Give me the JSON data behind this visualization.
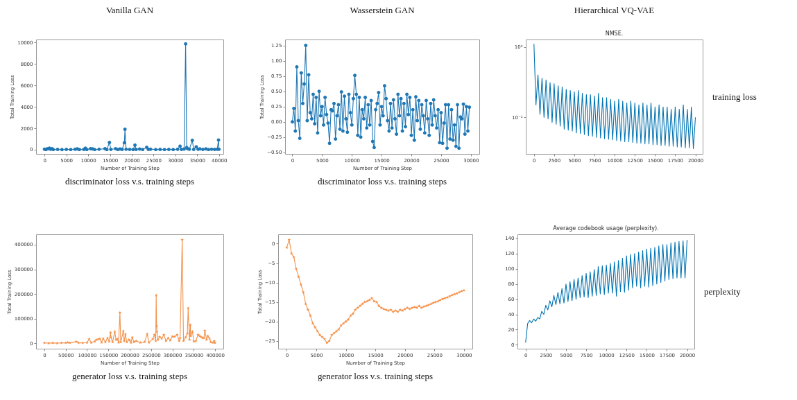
{
  "chart_data": [
    {
      "type": "line",
      "xlabel": "Number of Training Step",
      "ylabel": "Total Training Loss",
      "marker": "circle",
      "annotations": [
        "Vanilla GAN",
        "discriminator loss v.s. training steps"
      ],
      "xlim": [
        -1940,
        41000
      ],
      "ylim": [
        -390,
        10280
      ],
      "xticks": [
        0,
        5000,
        10000,
        15000,
        20000,
        25000,
        30000,
        35000,
        40000
      ],
      "yticks": [
        0,
        2000,
        4000,
        6000,
        8000,
        10000
      ],
      "x": [
        0,
        300,
        600,
        900,
        1120,
        1400,
        1730,
        2000,
        3000,
        4000,
        5000,
        6000,
        7000,
        7490,
        8000,
        9000,
        9370,
        9700,
        10550,
        11000,
        11500,
        12500,
        13860,
        14300,
        14880,
        15200,
        16300,
        16800,
        17300,
        17800,
        18300,
        18440,
        18700,
        19500,
        20300,
        20730,
        21000,
        21800,
        22500,
        23430,
        23800,
        24300,
        25500,
        26500,
        27500,
        28500,
        29500,
        30500,
        31070,
        31400,
        32000,
        32350,
        32600,
        32800,
        33200,
        33880,
        34200,
        34790,
        35200,
        35600,
        36300,
        37000,
        37600,
        38300,
        39000,
        39600,
        39890,
        40000
      ],
      "series": [
        {
          "color": "#1f77b4",
          "values": [
            50,
            20,
            80,
            100,
            150,
            40,
            100,
            20,
            30,
            10,
            30,
            20,
            40,
            80,
            20,
            30,
            150,
            20,
            100,
            80,
            20,
            40,
            100,
            20,
            680,
            30,
            100,
            20,
            70,
            30,
            650,
            1910,
            40,
            30,
            20,
            430,
            30,
            60,
            20,
            230,
            30,
            50,
            20,
            30,
            20,
            30,
            20,
            40,
            330,
            30,
            60,
            9870,
            200,
            100,
            40,
            870,
            30,
            270,
            40,
            80,
            30,
            80,
            20,
            40,
            30,
            50,
            910,
            40
          ]
        }
      ]
    },
    {
      "type": "line",
      "xlabel": "Number of Training Step",
      "ylabel": "Total Training Loss",
      "marker": "circle",
      "annotations": [
        "Wasserstein GAN",
        "discriminator loss v.s. training steps"
      ],
      "xlim": [
        -1220,
        31420
      ],
      "ylim": [
        -0.524,
        1.347
      ],
      "xticks": [
        0,
        5000,
        10000,
        15000,
        20000,
        25000,
        30000
      ],
      "yticks": [
        {
          "value": -0.5,
          "label": "−0.50"
        },
        {
          "value": -0.25,
          "label": "−0.25"
        },
        {
          "value": 0,
          "label": "0.00"
        },
        {
          "value": 0.25,
          "label": "0.25"
        },
        {
          "value": 0.5,
          "label": "0.50"
        },
        {
          "value": 0.75,
          "label": "0.75"
        },
        {
          "value": 1,
          "label": "1.00"
        },
        {
          "value": 1.25,
          "label": "1.25"
        }
      ],
      "x": [
        0,
        250,
        500,
        750,
        1000,
        1250,
        1500,
        1750,
        2000,
        2250,
        2500,
        2750,
        3000,
        3250,
        3500,
        3750,
        4000,
        4250,
        4500,
        4750,
        5000,
        5250,
        5500,
        5750,
        6000,
        6250,
        6500,
        6750,
        7000,
        7250,
        7500,
        7750,
        8000,
        8250,
        8500,
        8750,
        9000,
        9250,
        9500,
        9750,
        10000,
        10250,
        10500,
        10750,
        11000,
        11250,
        11500,
        11750,
        12000,
        12250,
        12500,
        12750,
        13000,
        13250,
        13500,
        13750,
        14000,
        14250,
        14500,
        14750,
        15000,
        15250,
        15500,
        15750,
        16000,
        16250,
        16500,
        16750,
        17000,
        17250,
        17500,
        17750,
        18000,
        18250,
        18500,
        18750,
        19000,
        19250,
        19500,
        19750,
        20000,
        20250,
        20500,
        20750,
        21000,
        21250,
        21500,
        21750,
        22000,
        22250,
        22500,
        22750,
        23000,
        23250,
        23500,
        23750,
        24000,
        24250,
        24500,
        24750,
        25000,
        25250,
        25500,
        25750,
        26000,
        26250,
        26500,
        26750,
        27000,
        27250,
        27500,
        27750,
        28000,
        28250,
        28500,
        28750,
        29000,
        29250,
        29500,
        29750
      ],
      "series": [
        {
          "color": "#1f77b4",
          "values": [
            0.0,
            0.22,
            -0.15,
            0.9,
            0.02,
            -0.27,
            0.8,
            0.3,
            0.62,
            1.25,
            0.02,
            0.77,
            0.15,
            0.05,
            0.45,
            -0.03,
            0.4,
            -0.18,
            0.5,
            0.1,
            0.25,
            -0.05,
            0.4,
            0.12,
            -0.02,
            -0.35,
            0.2,
            0.18,
            0.3,
            -0.28,
            0.1,
            0.28,
            -0.12,
            0.49,
            -0.15,
            0.42,
            0.05,
            -0.17,
            0.45,
            0.15,
            -0.05,
            0.38,
            0.76,
            0.45,
            -0.22,
            0.4,
            -0.25,
            0.2,
            0.05,
            0.4,
            -0.1,
            0.28,
            -0.05,
            0.35,
            -0.32,
            -0.42,
            0.2,
            0.3,
            0.48,
            -0.05,
            0.25,
            0.1,
            0.59,
            0.38,
            0.02,
            -0.15,
            0.3,
            -0.1,
            0.36,
            0.05,
            -0.2,
            0.45,
            0.1,
            0.38,
            -0.15,
            0.3,
            -0.08,
            0.45,
            0.12,
            0.4,
            -0.22,
            0.2,
            -0.3,
            0.41,
            0.02,
            0.35,
            -0.12,
            0.28,
            0.1,
            -0.18,
            0.35,
            0.05,
            -0.22,
            0.3,
            -0.05,
            0.36,
            0.1,
            -0.1,
            0.2,
            -0.34,
            0.15,
            -0.35,
            -0.02,
            0.28,
            -0.43,
            0.28,
            -0.28,
            0.2,
            -0.3,
            -0.05,
            -0.4,
            0.28,
            -0.43,
            0.08,
            0.05,
            0.29,
            -0.2,
            0.25,
            -0.15,
            0.24
          ]
        }
      ]
    },
    {
      "type": "line",
      "title": "NMSE.",
      "log": "y",
      "annotations": [
        "Hierarchical VQ-VAE",
        "training loss"
      ],
      "xlim": [
        -1010,
        20900
      ],
      "ylim": [
        0.0303,
        1.27
      ],
      "xticks": [
        0,
        2500,
        5000,
        7500,
        10000,
        12500,
        15000,
        17500,
        20000
      ],
      "yticks": [
        {
          "value": 0.1,
          "label": "10⁻¹"
        },
        {
          "value": 1,
          "label": "10⁰"
        }
      ],
      "x": [
        0,
        250,
        500,
        750,
        1000,
        1250,
        1500,
        1750,
        2000,
        2250,
        2500,
        2750,
        3000,
        3250,
        3500,
        3750,
        4000,
        4250,
        4500,
        4750,
        5000,
        5250,
        5500,
        5750,
        6000,
        6250,
        6500,
        6750,
        7000,
        7250,
        7500,
        7750,
        8000,
        8250,
        8500,
        8750,
        9000,
        9250,
        9500,
        9750,
        10000,
        10250,
        10500,
        10750,
        11000,
        11250,
        11500,
        11750,
        12000,
        12250,
        12500,
        12750,
        13000,
        13250,
        13500,
        13750,
        14000,
        14250,
        14500,
        14750,
        15000,
        15250,
        15500,
        15750,
        16000,
        16250,
        16500,
        16750,
        17000,
        17250,
        17500,
        17750,
        18000,
        18250,
        18500,
        18750,
        19000,
        19250,
        19500,
        19750,
        20000
      ],
      "series": [
        {
          "color": "#0173b2",
          "values": [
            1.1,
            0.15,
            0.4,
            0.11,
            0.36,
            0.1,
            0.34,
            0.095,
            0.31,
            0.085,
            0.3,
            0.08,
            0.28,
            0.075,
            0.27,
            0.068,
            0.25,
            0.066,
            0.24,
            0.064,
            0.23,
            0.06,
            0.24,
            0.059,
            0.22,
            0.057,
            0.21,
            0.055,
            0.21,
            0.054,
            0.2,
            0.052,
            0.22,
            0.051,
            0.19,
            0.05,
            0.19,
            0.049,
            0.18,
            0.048,
            0.17,
            0.047,
            0.18,
            0.046,
            0.17,
            0.045,
            0.16,
            0.045,
            0.17,
            0.044,
            0.16,
            0.043,
            0.15,
            0.043,
            0.16,
            0.042,
            0.15,
            0.042,
            0.16,
            0.041,
            0.14,
            0.041,
            0.15,
            0.04,
            0.14,
            0.04,
            0.14,
            0.039,
            0.13,
            0.039,
            0.14,
            0.038,
            0.13,
            0.038,
            0.15,
            0.037,
            0.13,
            0.037,
            0.14,
            0.036,
            0.1
          ]
        }
      ]
    },
    {
      "type": "line",
      "xlabel": "Number of Training Step",
      "ylabel": "Total Training Loss",
      "marker": "star",
      "annotations": [
        "generator loss v.s. training steps"
      ],
      "xlim": [
        -19400,
        419400
      ],
      "ylim": [
        -21500,
        442000
      ],
      "xticks": [
        0,
        50000,
        100000,
        150000,
        200000,
        250000,
        300000,
        350000,
        400000
      ],
      "yticks": [
        0,
        100000,
        200000,
        300000,
        400000
      ],
      "x": [
        0,
        10000,
        20000,
        30000,
        40000,
        50000,
        55000,
        60000,
        75000,
        80000,
        90000,
        100000,
        105000,
        110000,
        118000,
        122000,
        127000,
        130000,
        134000,
        138000,
        143000,
        148000,
        152000,
        155000,
        156000,
        160000,
        165000,
        168000,
        171000,
        174000,
        177000,
        179000,
        185000,
        187000,
        190000,
        193000,
        198000,
        200000,
        203000,
        206000,
        210000,
        215000,
        225000,
        235000,
        241000,
        245000,
        254000,
        258000,
        261000,
        262000,
        263000,
        264000,
        266000,
        270000,
        275000,
        280000,
        285000,
        290000,
        295000,
        300000,
        305000,
        311000,
        316000,
        318000,
        323000,
        326000,
        331000,
        335000,
        337000,
        340000,
        342000,
        343000,
        347000,
        350000,
        355000,
        360000,
        364000,
        367000,
        371000,
        374000,
        376000,
        380000,
        383000,
        387000,
        390000,
        395000,
        398000,
        400000
      ],
      "series": [
        {
          "color": "#f4924b",
          "values": [
            2000,
            1000,
            2000,
            1000,
            2000,
            2000,
            4000,
            2000,
            7000,
            2000,
            2000,
            3000,
            18000,
            3000,
            8000,
            15000,
            17000,
            19000,
            4000,
            20000,
            5000,
            22000,
            8000,
            44000,
            25000,
            5000,
            48000,
            15000,
            18000,
            4000,
            125000,
            5000,
            50000,
            10000,
            37000,
            5000,
            15000,
            12000,
            3000,
            25000,
            5000,
            10000,
            3000,
            6000,
            38000,
            4000,
            18000,
            35000,
            10000,
            195000,
            70000,
            47000,
            15000,
            27000,
            20000,
            35000,
            10000,
            22000,
            12000,
            28000,
            27000,
            35000,
            10000,
            22000,
            420000,
            10000,
            25000,
            40000,
            143000,
            15000,
            75000,
            30000,
            48000,
            8000,
            10000,
            35000,
            30000,
            26000,
            22000,
            22000,
            52000,
            15000,
            30000,
            20000,
            5000,
            3000,
            10000,
            2000
          ]
        }
      ]
    },
    {
      "type": "line",
      "xlabel": "Number of Training Step",
      "ylabel": "Total Training Loss",
      "marker": "star",
      "annotations": [
        "generator loss v.s. training steps"
      ],
      "xlim": [
        -1460,
        31420
      ],
      "ylim": [
        -27.0,
        2.4
      ],
      "xticks": [
        0,
        5000,
        10000,
        15000,
        20000,
        25000,
        30000
      ],
      "yticks": [
        -25,
        -20,
        -15,
        -10,
        -5,
        0
      ],
      "x": [
        0,
        400,
        800,
        1200,
        1600,
        2000,
        2400,
        2800,
        3200,
        3600,
        4000,
        4400,
        4800,
        5200,
        5600,
        6000,
        6400,
        6800,
        7200,
        7600,
        8000,
        8400,
        8800,
        9200,
        9600,
        10000,
        10400,
        10800,
        11200,
        11600,
        12000,
        12400,
        12800,
        13200,
        13600,
        14000,
        14400,
        14800,
        15200,
        15600,
        16000,
        16400,
        16800,
        17200,
        17600,
        18000,
        18400,
        18800,
        19200,
        19600,
        20000,
        20400,
        20800,
        21200,
        21600,
        22000,
        22400,
        22800,
        23200,
        23600,
        24000,
        24400,
        24800,
        25200,
        25600,
        26000,
        26400,
        26800,
        27200,
        27600,
        28000,
        28400,
        28800,
        29200,
        29600,
        30000
      ],
      "series": [
        {
          "color": "#f4924b",
          "values": [
            -1,
            1,
            -2.5,
            -3.5,
            -6.5,
            -8.5,
            -10.5,
            -12.5,
            -15.5,
            -17,
            -18.5,
            -20.5,
            -21.5,
            -22.5,
            -23.5,
            -24,
            -24.5,
            -25.5,
            -25,
            -23.5,
            -23,
            -22.5,
            -22,
            -21,
            -20.5,
            -20,
            -19.5,
            -18.5,
            -18,
            -17,
            -16.5,
            -16,
            -15.5,
            -15,
            -14.8,
            -14.5,
            -14,
            -14.8,
            -15,
            -16,
            -16.5,
            -16.8,
            -17,
            -17.2,
            -17,
            -17.5,
            -17.2,
            -17.5,
            -17,
            -17.2,
            -16.8,
            -16.5,
            -16.8,
            -16.5,
            -16.3,
            -16.5,
            -16,
            -16.5,
            -16.2,
            -16,
            -15.8,
            -15.5,
            -15.2,
            -15,
            -14.8,
            -14.5,
            -14.2,
            -14,
            -13.8,
            -13.5,
            -13.2,
            -13,
            -12.8,
            -12.5,
            -12.2,
            -12
          ]
        }
      ]
    },
    {
      "type": "line",
      "title": "Average codebook usage (perplexity).",
      "annotations": [
        "perplexity"
      ],
      "xlim": [
        -1010,
        20900
      ],
      "ylim": [
        -5.1,
        145.4
      ],
      "xticks": [
        0,
        2500,
        5000,
        7500,
        10000,
        12500,
        15000,
        17500,
        20000
      ],
      "yticks": [
        0,
        20,
        40,
        60,
        80,
        100,
        120,
        140
      ],
      "x": [
        0,
        250,
        500,
        750,
        1000,
        1250,
        1500,
        1750,
        2000,
        2250,
        2500,
        2750,
        3000,
        3250,
        3500,
        3750,
        4000,
        4250,
        4500,
        4750,
        5000,
        5250,
        5500,
        5750,
        6000,
        6250,
        6500,
        6750,
        7000,
        7250,
        7500,
        7750,
        8000,
        8250,
        8500,
        8750,
        9000,
        9250,
        9500,
        9750,
        10000,
        10250,
        10500,
        10750,
        11000,
        11250,
        11500,
        11750,
        12000,
        12250,
        12500,
        12750,
        13000,
        13250,
        13500,
        13750,
        14000,
        14250,
        14500,
        14750,
        15000,
        15250,
        15500,
        15750,
        16000,
        16250,
        16500,
        16750,
        17000,
        17250,
        17500,
        17750,
        18000,
        18250,
        18500,
        18750,
        19000,
        19250,
        19500,
        19750,
        20000
      ],
      "series": [
        {
          "color": "#0173b2",
          "values": [
            3,
            28,
            32,
            29,
            34,
            31,
            36,
            34,
            44,
            40,
            52,
            46,
            58,
            50,
            65,
            53,
            69,
            54,
            74,
            55,
            80,
            57,
            83,
            58,
            86,
            60,
            88,
            62,
            91,
            63,
            94,
            62,
            96,
            64,
            99,
            65,
            103,
            67,
            104,
            66,
            105,
            68,
            107,
            68,
            109,
            64,
            111,
            70,
            114,
            69,
            117,
            72,
            119,
            75,
            120,
            77,
            122,
            75,
            124,
            77,
            126,
            76,
            127,
            78,
            128,
            80,
            130,
            82,
            132,
            84,
            132,
            86,
            134,
            87,
            135,
            88,
            136,
            88,
            137,
            88,
            138
          ]
        }
      ]
    }
  ]
}
